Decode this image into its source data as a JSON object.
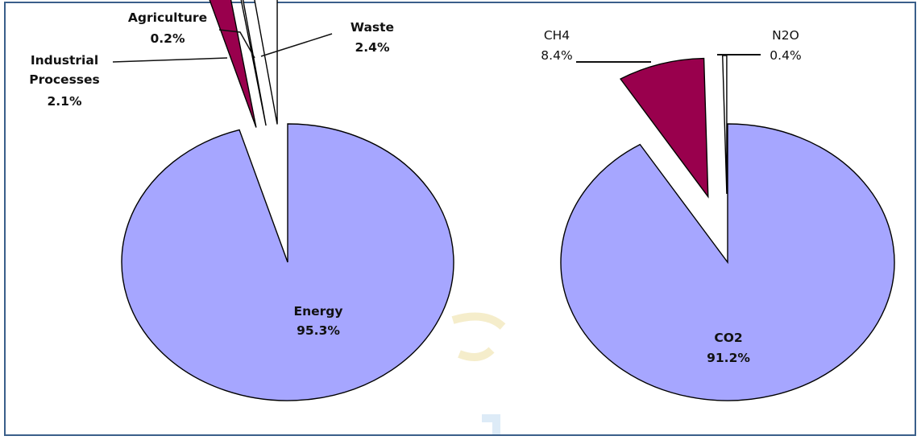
{
  "chart_data": [
    {
      "type": "pie",
      "exploded": true,
      "slices": [
        {
          "label": "Energy",
          "value_text": "95.3%",
          "value": 95.3,
          "color": "#a6a6ff"
        },
        {
          "label": "Industrial Processes",
          "label_lines": [
            "Industrial",
            "Processes"
          ],
          "value_text": "2.1%",
          "value": 2.1,
          "color": "#99004d"
        },
        {
          "label": "Agriculture",
          "value_text": "0.2%",
          "value": 0.2,
          "color": "#ffffff"
        },
        {
          "label": "Waste",
          "value_text": "2.4%",
          "value": 2.4,
          "color": "#ffffff"
        }
      ]
    },
    {
      "type": "pie",
      "exploded": true,
      "slices": [
        {
          "label": "CO2",
          "value_text": "91.2%",
          "value": 91.2,
          "color": "#a6a6ff"
        },
        {
          "label": "CH4",
          "value_text": "8.4%",
          "value": 8.4,
          "color": "#99004d"
        },
        {
          "label": "N2O",
          "value_text": "0.4%",
          "value": 0.4,
          "color": "#ffffff"
        }
      ]
    }
  ]
}
